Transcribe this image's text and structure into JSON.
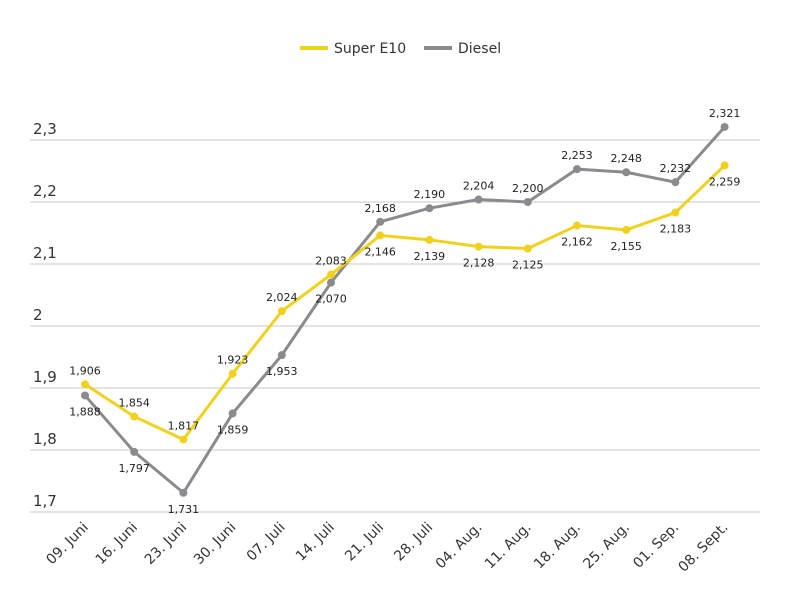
{
  "chart_data": {
    "type": "line",
    "title": "",
    "xlabel": "",
    "ylabel": "",
    "categories": [
      "09. Juni",
      "16. Juni",
      "23. Juni",
      "30. Juni",
      "07. Juli",
      "14. Juli",
      "21. Juli",
      "28. Juli",
      "04. Aug.",
      "11. Aug.",
      "18. Aug.",
      "25. Aug.",
      "01. Sep.",
      "08. Sept."
    ],
    "y_ticks": [
      "1,7",
      "1,8",
      "1,9",
      "2",
      "2,1",
      "2,2",
      "2,3"
    ],
    "y_tick_values": [
      1.7,
      1.8,
      1.9,
      2.0,
      2.1,
      2.2,
      2.3
    ],
    "ylim": [
      1.7,
      2.3
    ],
    "grid": true,
    "legend_position": "top-center",
    "series": [
      {
        "name": "Super E10",
        "color": "#f0d21e",
        "values": [
          1.906,
          1.854,
          1.817,
          1.923,
          2.024,
          2.083,
          2.146,
          2.139,
          2.128,
          2.125,
          2.162,
          2.155,
          2.183,
          2.259
        ],
        "labels": [
          "1,906",
          "1,854",
          "1,817",
          "1,923",
          "2,024",
          "2,083",
          "2,146",
          "2,139",
          "2,128",
          "2,125",
          "2,162",
          "2,155",
          "2,183",
          "2,259"
        ]
      },
      {
        "name": "Diesel",
        "color": "#8c8a8f",
        "values": [
          1.888,
          1.797,
          1.731,
          1.859,
          1.953,
          2.07,
          2.168,
          2.19,
          2.204,
          2.2,
          2.253,
          2.248,
          2.232,
          2.321
        ],
        "labels": [
          "1,888",
          "1,797",
          "1,731",
          "1,859",
          "1,953",
          "2,070",
          "2,168",
          "2,190",
          "2,204",
          "2,200",
          "2,253",
          "2,248",
          "2,232",
          "2,321"
        ]
      }
    ]
  }
}
